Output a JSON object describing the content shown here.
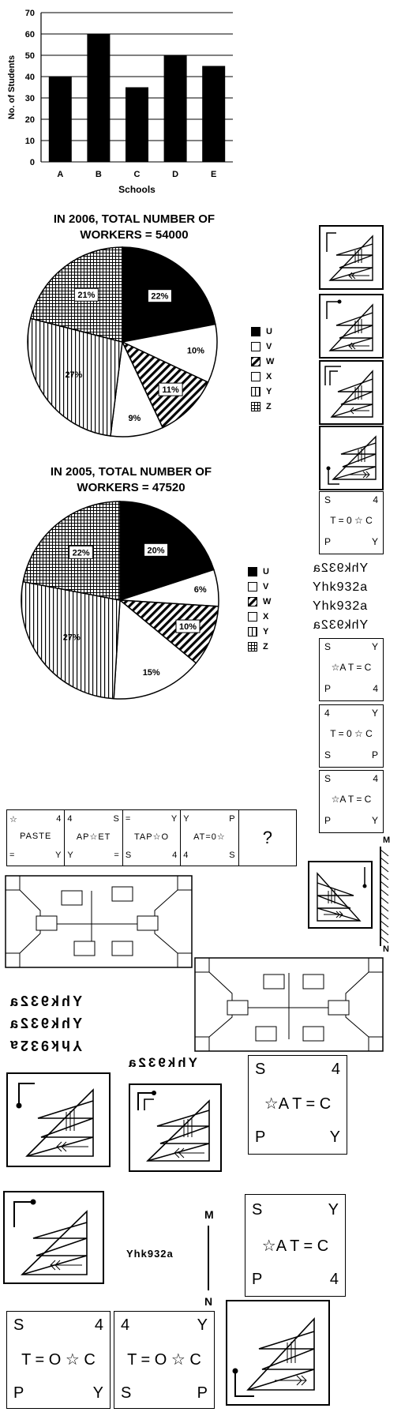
{
  "bar_chart": {
    "chart_data": {
      "type": "bar",
      "categories": [
        "A",
        "B",
        "C",
        "D",
        "E"
      ],
      "values": [
        40,
        60,
        35,
        50,
        45
      ],
      "xlabel": "Schools",
      "ylabel": "No. of Students",
      "ylim": [
        0,
        70
      ],
      "yticks": [
        "0",
        "10",
        "20",
        "30",
        "40",
        "50",
        "60",
        "70"
      ],
      "grid": true
    }
  },
  "pie_2006": {
    "title_line1": "IN 2006, TOTAL NUMBER OF",
    "title_line2": "WORKERS = 54000",
    "chart_data": {
      "type": "pie",
      "labels": [
        "U",
        "V",
        "W",
        "X",
        "Y",
        "Z"
      ],
      "values": [
        22,
        10,
        11,
        9,
        27,
        21
      ],
      "value_labels": [
        "22%",
        "10%",
        "11%",
        "9%",
        "27%",
        "21%"
      ],
      "legend": "right"
    }
  },
  "pie_2005": {
    "title_line1": "IN 2005, TOTAL NUMBER OF",
    "title_line2": "WORKERS = 47520",
    "chart_data": {
      "type": "pie",
      "labels": [
        "U",
        "V",
        "W",
        "X",
        "Y",
        "Z"
      ],
      "values": [
        20,
        6,
        10,
        15,
        27,
        22
      ],
      "value_labels": [
        "20%",
        "6%",
        "10%",
        "15%",
        "27%",
        "22%"
      ],
      "legend": "right"
    }
  },
  "legend_labels": [
    "U",
    "V",
    "W",
    "X",
    "Y",
    "Z"
  ],
  "symbol_tables": {
    "t1": {
      "r1l": "S",
      "r1r": "4",
      "r2": "T = 0 ☆ C",
      "r3l": "P",
      "r3r": "Y"
    },
    "t2": {
      "r1l": "S",
      "r1r": "Y",
      "r2": "☆A T = C",
      "r3l": "P",
      "r3r": "4"
    },
    "t3": {
      "r1l": "4",
      "r1r": "Y",
      "r2": "T = 0 ☆ C",
      "r3l": "S",
      "r3r": "P"
    },
    "t4": {
      "r1l": "S",
      "r1r": "4",
      "r2": "☆A T = C",
      "r3l": "P",
      "r3r": "Y"
    },
    "b1": {
      "r1l": "S",
      "r1r": "4",
      "r2": "☆A T = C",
      "r3l": "P",
      "r3r": "Y"
    },
    "b2": {
      "r1l": "S",
      "r1r": "Y",
      "r2": "☆A T = C",
      "r3l": "P",
      "r3r": "4"
    },
    "b3": {
      "r1l": "S",
      "r1r": "4",
      "r2": "T = O ☆ C",
      "r3l": "P",
      "r3r": "Y"
    },
    "b4": {
      "r1l": "4",
      "r1r": "Y",
      "r2": "T = O ☆ C",
      "r3l": "S",
      "r3r": "P"
    }
  },
  "mirror_text_right": [
    "Yhk932a",
    "Yhk932a",
    "Yhk932a",
    "Yhk932a"
  ],
  "series_grid": {
    "cells": [
      {
        "r1l": "☆",
        "r1r": "4",
        "r2": "PASTE",
        "r3l": "=",
        "r3r": "Y"
      },
      {
        "r1l": "4",
        "r1r": "S",
        "r2": "AP☆ET",
        "r3l": "Y",
        "r3r": "="
      },
      {
        "r1l": "=",
        "r1r": "Y",
        "r2": "TAP☆O",
        "r3l": "S",
        "r3r": "4"
      },
      {
        "r1l": "Y",
        "r1r": "P",
        "r2": "AT=0☆",
        "r3l": "4",
        "r3r": "S"
      }
    ],
    "question": "?"
  },
  "mirror_labels": {
    "m": "M",
    "n": "N"
  },
  "mirror_text_left": [
    "Yhk932a",
    "Yhk932a",
    "Yhk932a"
  ],
  "mirror_text_mid": "Yhk932a",
  "plain_text": "Yhk932a",
  "mirror_line2": {
    "m": "M",
    "n": "N"
  }
}
